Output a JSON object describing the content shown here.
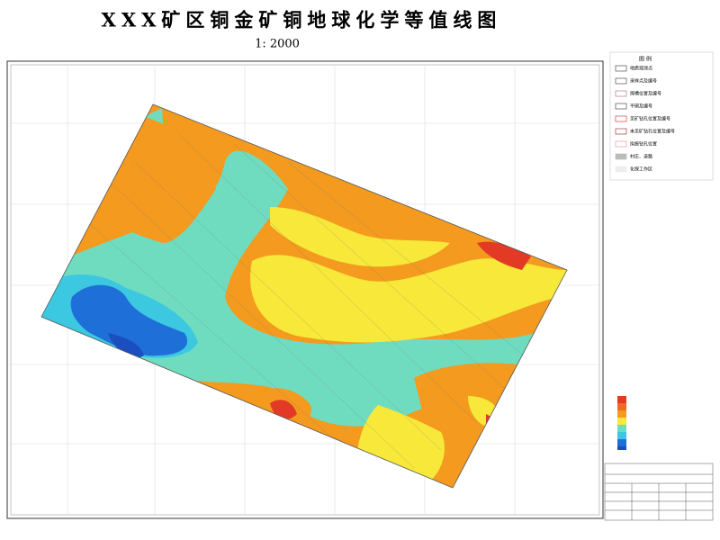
{
  "header": {
    "title": "XXX矿区铜金矿铜地球化学等值线图",
    "scale": "1: 2000"
  },
  "legend": {
    "title": "图 例",
    "items": [
      "地质观测点",
      "采样点及编号",
      "探槽位置及编号",
      "平硐及编号",
      "见矿钻孔位置及编号",
      "未见矿钻孔位置及编号",
      "拟施钻孔位置",
      "村庄、道路",
      "化探工作区"
    ]
  }
}
